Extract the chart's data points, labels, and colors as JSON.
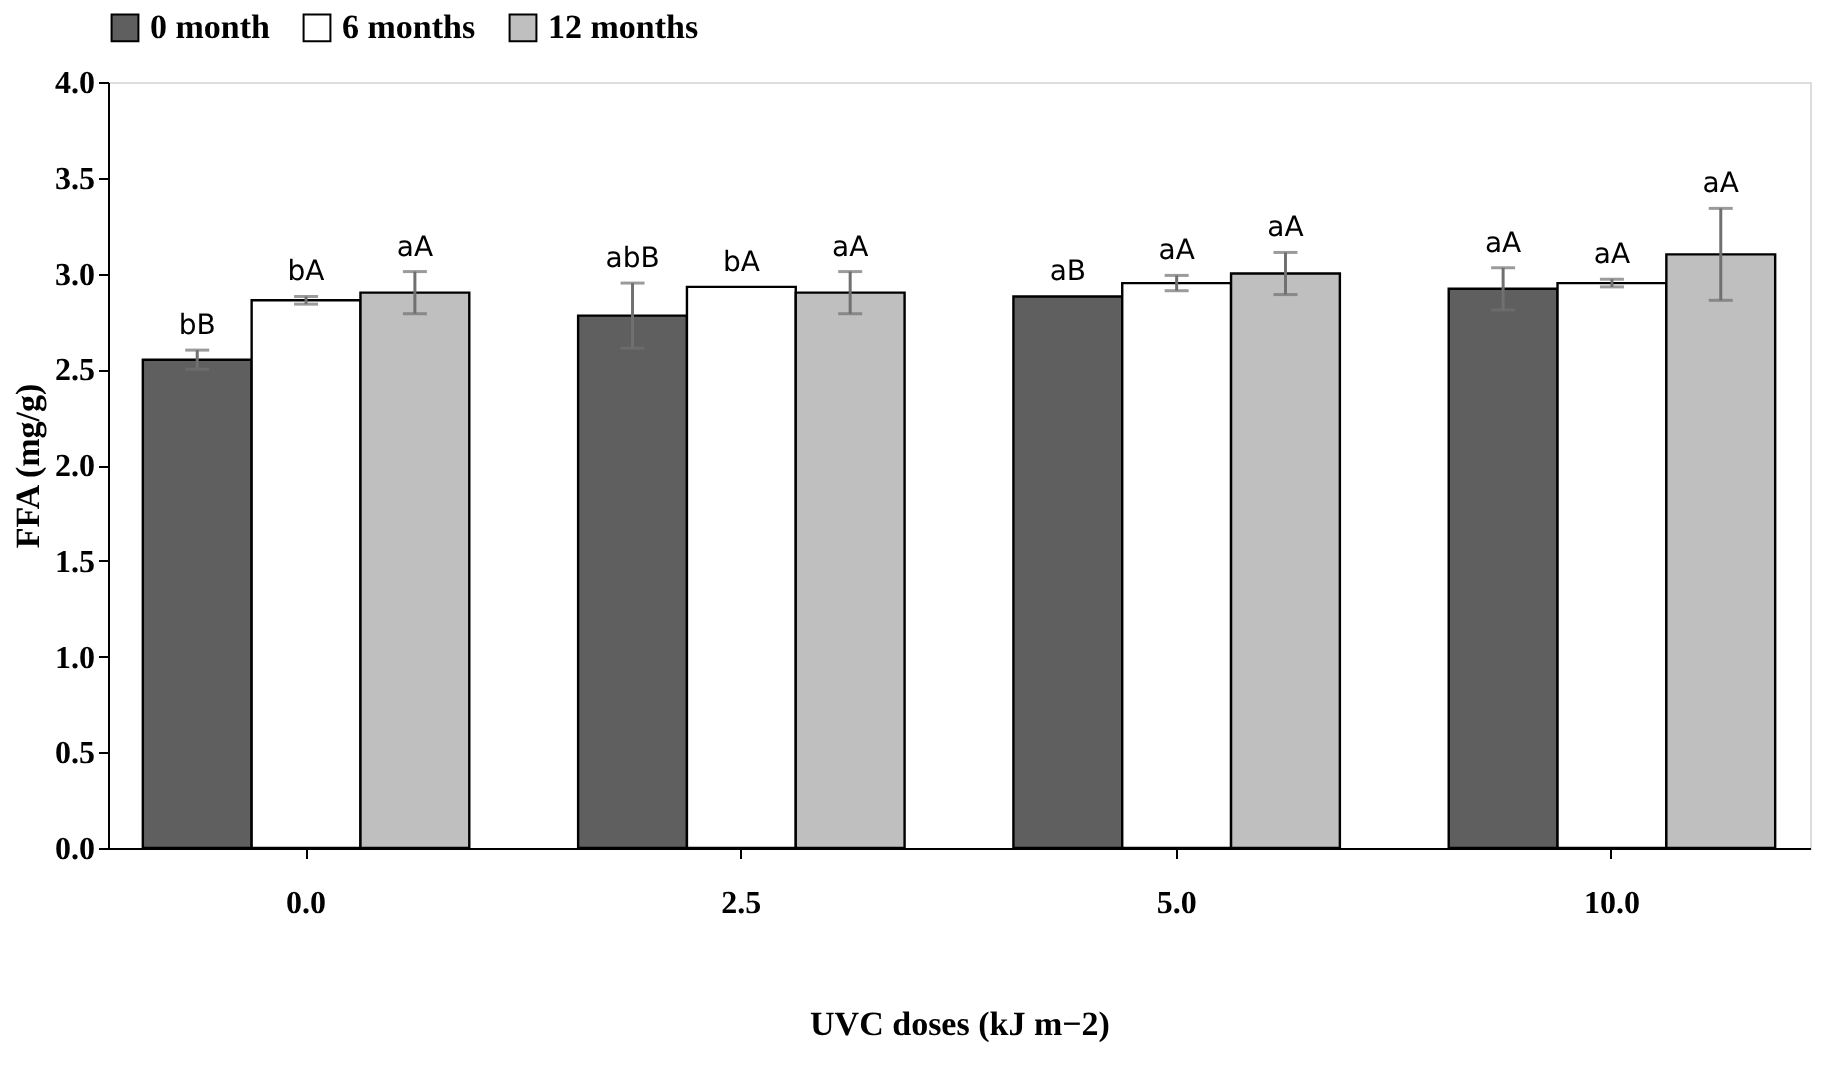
{
  "chart_data": {
    "type": "bar",
    "xlabel": "UVC doses (kJ m−2)",
    "ylabel": "FFA (mg/g)",
    "categories": [
      "0.0",
      "2.5",
      "5.0",
      "10.0"
    ],
    "series": [
      {
        "name": "0 month",
        "color": "#5f5f5f",
        "values": [
          2.55,
          2.78,
          2.88,
          2.92
        ],
        "errors": [
          0.05,
          0.17,
          0.0,
          0.11
        ],
        "value_labels": [
          "bB",
          "abB",
          "aB",
          "aA"
        ]
      },
      {
        "name": "6 months",
        "color": "#ffffff",
        "values": [
          2.86,
          2.93,
          2.95,
          2.95
        ],
        "errors": [
          0.02,
          0.0,
          0.04,
          0.02
        ],
        "value_labels": [
          "bA",
          "bA",
          "aA",
          "aA"
        ]
      },
      {
        "name": "12 months",
        "color": "#bfbfbf",
        "values": [
          2.9,
          2.9,
          3.0,
          3.1
        ],
        "errors": [
          0.11,
          0.11,
          0.11,
          0.24
        ],
        "value_labels": [
          "aA",
          "aA",
          "aA",
          "aA"
        ]
      }
    ],
    "ylim": [
      0,
      4
    ],
    "yticks": [
      {
        "value": 0,
        "label": "0.0"
      },
      {
        "value": 0.5,
        "label": "0.5"
      },
      {
        "value": 1,
        "label": "1.0"
      },
      {
        "value": 1.5,
        "label": "1.5"
      },
      {
        "value": 2,
        "label": "2.0"
      },
      {
        "value": 2.5,
        "label": "2.5"
      },
      {
        "value": 3,
        "label": "3.0"
      },
      {
        "value": 3.5,
        "label": "3.5"
      },
      {
        "value": 4,
        "label": "4.0"
      }
    ],
    "grid": false,
    "legend": "top"
  }
}
